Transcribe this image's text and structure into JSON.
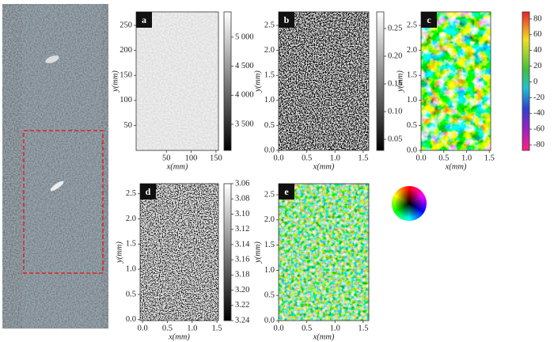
{
  "figure": {
    "panels": [
      {
        "label": "a",
        "x_label": "x(mm)",
        "y_label": "y(mm)",
        "xlim": [
          -11,
          155
        ],
        "xticks": [
          50,
          100,
          150
        ],
        "ylim": [
          0,
          277
        ],
        "yticks": [
          50,
          100,
          150,
          200,
          250
        ],
        "colorbar": {
          "lim": [
            3050,
            5436
          ],
          "ticks": [
            {
              "value": 3500,
              "label": "3 500"
            },
            {
              "value": 4000,
              "label": "4 000"
            },
            {
              "value": 4500,
              "label": "4 500"
            },
            {
              "value": 5000,
              "label": "5 000"
            }
          ]
        }
      },
      {
        "label": "b",
        "x_label": "x(mm)",
        "y_label": "y(mm)",
        "xlim": [
          0,
          1.6
        ],
        "xticks": [
          {
            "value": 0,
            "label": "0.0"
          },
          0.5,
          {
            "value": 1,
            "label": "1.0"
          },
          1.5
        ],
        "ylim": [
          0,
          2.77
        ],
        "yticks": [
          {
            "value": 0,
            "label": "0.0"
          },
          0.5,
          {
            "value": 1,
            "label": "1.0"
          },
          1.5,
          {
            "value": 2,
            "label": "2.0"
          },
          2.5
        ],
        "colorbar": {
          "lim": [
            0.03,
            0.28
          ],
          "ticks": [
            0.05,
            {
              "value": 0.1,
              "label": "0.10"
            },
            0.15,
            {
              "value": 0.2,
              "label": "0.20"
            },
            0.25
          ]
        }
      },
      {
        "label": "c",
        "x_label": "x(mm)",
        "y_label": "y(mm)",
        "xlim": [
          0,
          1.53
        ],
        "xticks": [
          {
            "value": 0,
            "label": "0.0"
          },
          0.5,
          {
            "value": 1,
            "label": "1.0"
          },
          1.5
        ],
        "ylim": [
          0,
          2.77
        ],
        "yticks": [
          {
            "value": 0,
            "label": "0.0"
          },
          0.5,
          {
            "value": 1,
            "label": "1.0"
          },
          1.5,
          {
            "value": 2,
            "label": "2.0"
          },
          2.5
        ],
        "colorbar": {
          "lim": [
            -87,
            89
          ],
          "ticks": [
            -80,
            -60,
            -40,
            -20,
            0,
            20,
            40,
            60,
            80
          ]
        }
      },
      {
        "label": "d",
        "x_label": "x(mm)",
        "y_label": "y(mm)",
        "xlim": [
          -0.05,
          1.53
        ],
        "xticks": [
          {
            "value": 0,
            "label": "0.0"
          },
          0.5,
          {
            "value": 1,
            "label": "1.0"
          },
          1.5
        ],
        "ylim": [
          -0.02,
          2.7
        ],
        "yticks": [
          {
            "value": 0,
            "label": "0.0"
          },
          0.5,
          {
            "value": 1,
            "label": "1.0"
          },
          1.5,
          {
            "value": 2,
            "label": "2.0"
          },
          2.5
        ],
        "colorbar": {
          "lim": [
            3.24,
            3.06
          ],
          "ticks": [
            3.06,
            3.08,
            {
              "value": 3.1,
              "label": "3.10"
            },
            3.12,
            3.14,
            3.16,
            3.18,
            {
              "value": 3.2,
              "label": "3.20"
            },
            3.22,
            3.24
          ]
        }
      },
      {
        "label": "e",
        "x_label": "x(mm)",
        "y_label": "y(mm)",
        "xlim": [
          0,
          1.6
        ],
        "xticks": [
          {
            "value": 0,
            "label": "0.0"
          },
          0.5,
          {
            "value": 1,
            "label": "1.0"
          },
          1.5
        ],
        "ylim": [
          0,
          2.72
        ],
        "yticks": [
          {
            "value": 0,
            "label": "0.0"
          },
          0.5,
          {
            "value": 1,
            "label": "1.0"
          },
          1.5,
          {
            "value": 2,
            "label": "2.0"
          },
          2.5
        ]
      }
    ]
  }
}
